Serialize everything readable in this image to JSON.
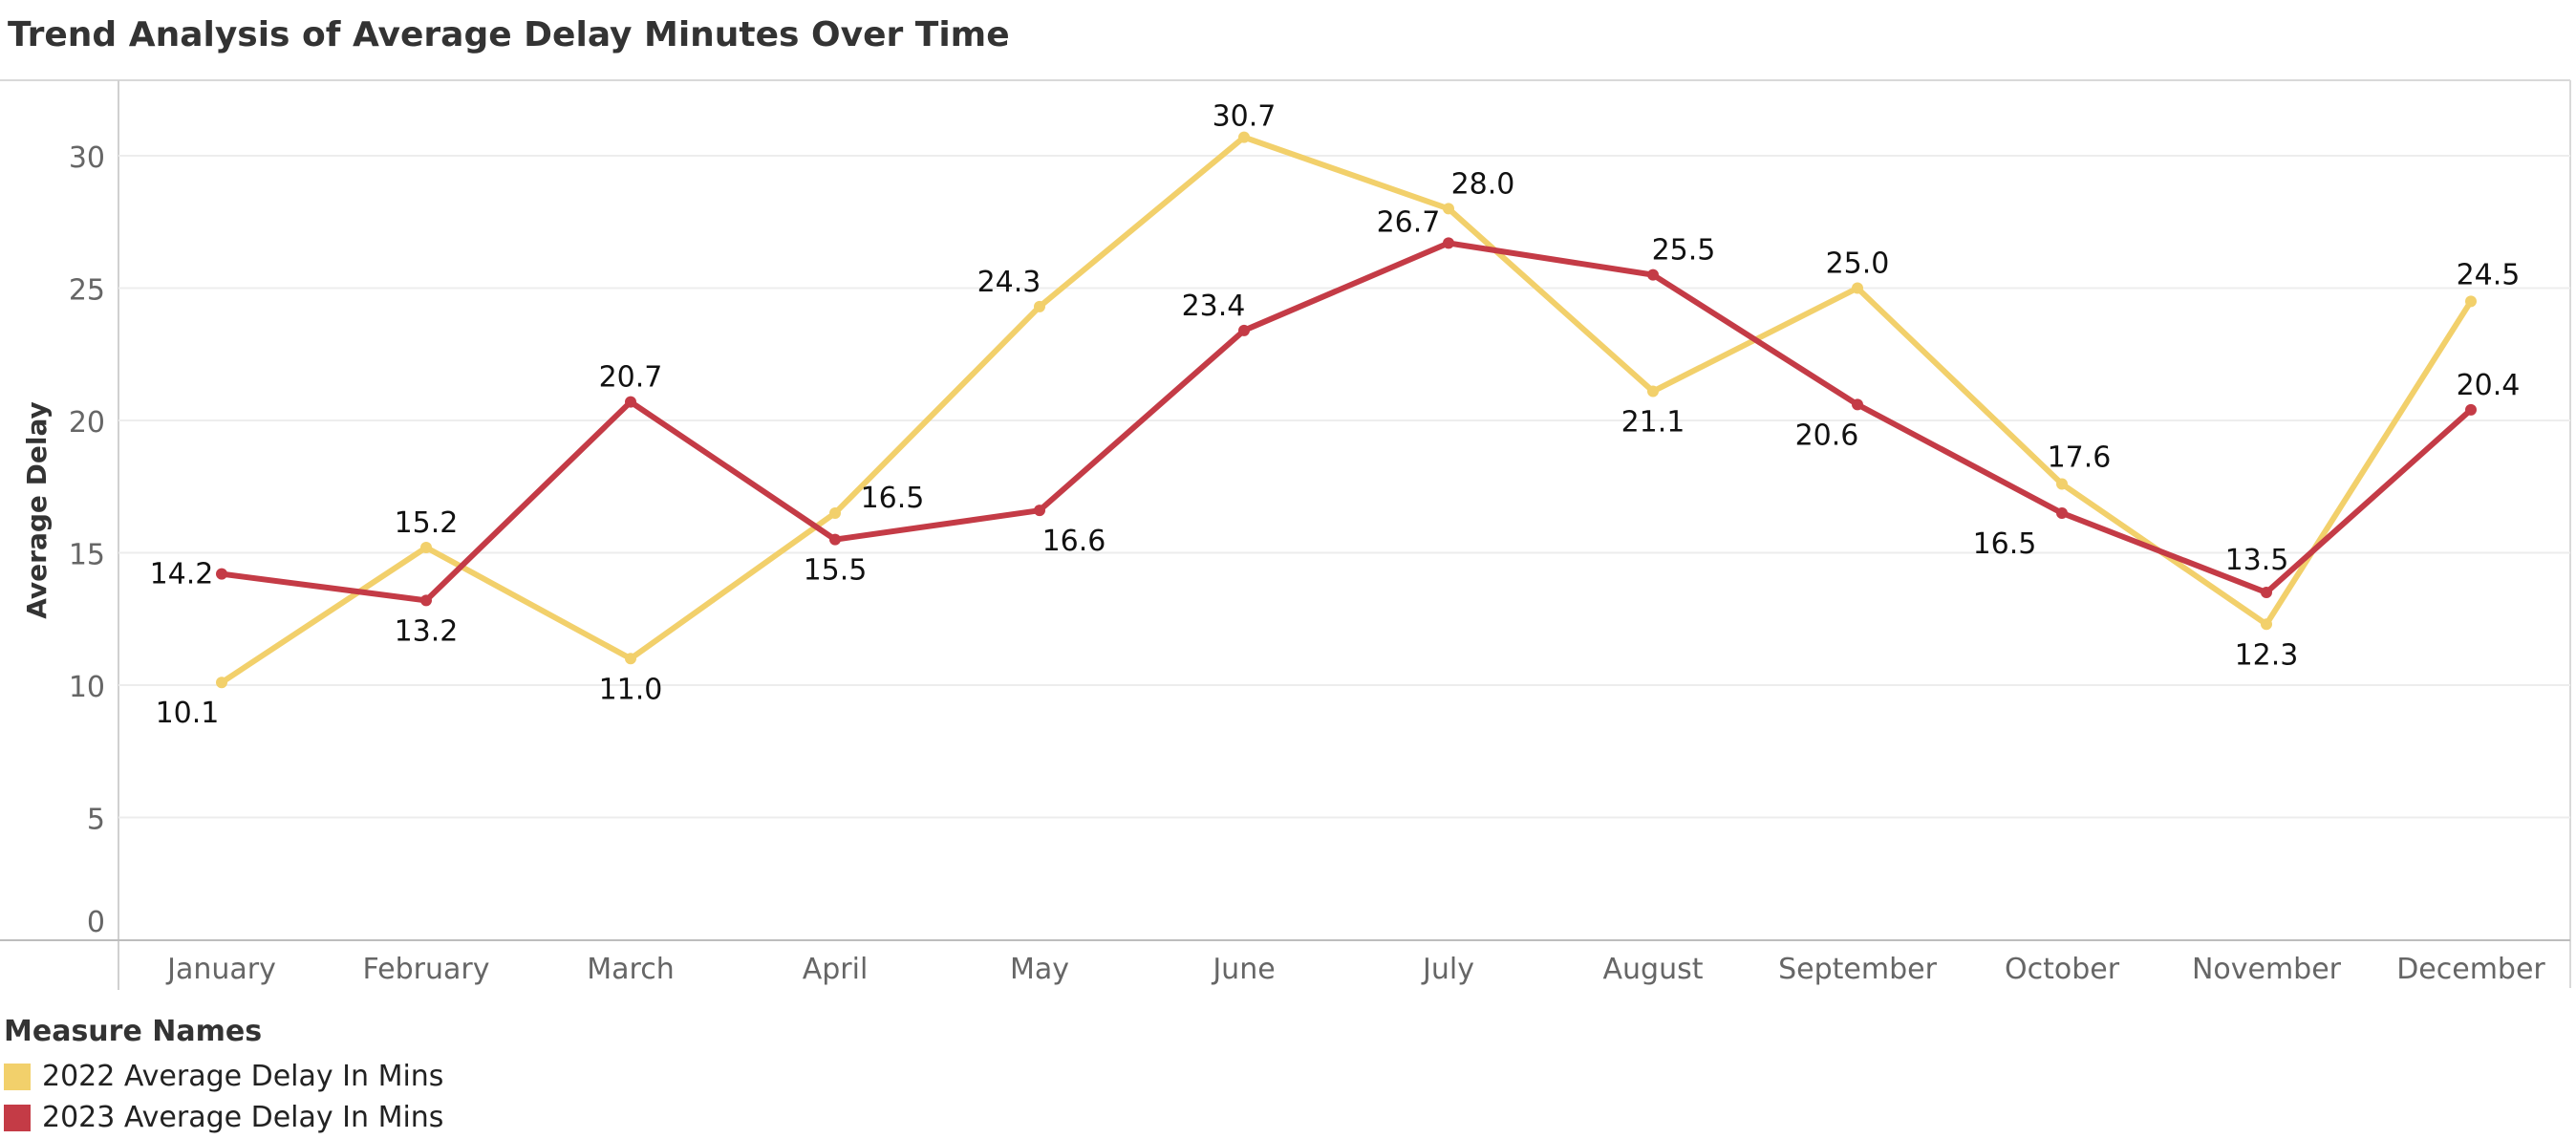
{
  "chart_data": {
    "type": "line",
    "title": "Trend Analysis of Average Delay Minutes Over Time",
    "xlabel": "",
    "ylabel": "Average Delay",
    "categories": [
      "January",
      "February",
      "March",
      "April",
      "May",
      "June",
      "July",
      "August",
      "September",
      "October",
      "November",
      "December"
    ],
    "ylim": [
      0,
      32
    ],
    "yticks": [
      0,
      5,
      10,
      15,
      20,
      25,
      30
    ],
    "grid": true,
    "legend_position": "bottom-left",
    "legend_title": "Measure Names",
    "series": [
      {
        "name": "2022 Average Delay In Mins",
        "color": "#f2d06b",
        "values": [
          10.1,
          15.2,
          11.0,
          16.5,
          24.3,
          30.7,
          28.0,
          21.1,
          25.0,
          17.6,
          12.3,
          24.5
        ],
        "labels": [
          "10.1",
          "15.2",
          "11.0",
          "16.5",
          "24.3",
          "30.7",
          "28.0",
          "21.1",
          "25.0",
          "17.6",
          "12.3",
          "24.5"
        ]
      },
      {
        "name": "2023 Average Delay In Mins",
        "color": "#c43b46",
        "values": [
          14.2,
          13.2,
          20.7,
          15.5,
          16.6,
          23.4,
          26.7,
          25.5,
          20.6,
          16.5,
          13.5,
          20.4
        ],
        "labels": [
          "14.2",
          "13.2",
          "20.7",
          "15.5",
          "16.6",
          "23.4",
          "26.7",
          "25.5",
          "20.6",
          "16.5",
          "13.5",
          "20.4"
        ]
      }
    ]
  }
}
